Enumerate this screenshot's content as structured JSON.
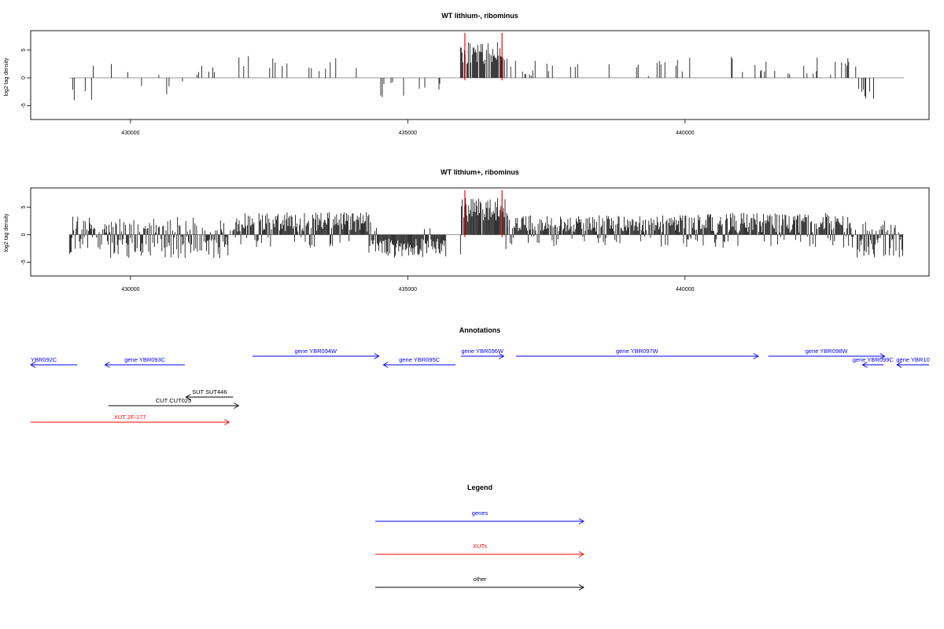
{
  "chart_data": [
    {
      "type": "bar",
      "title": "WT lithium-, ribominus",
      "ylabel": "log2 tag density",
      "xlim": [
        428200,
        444400
      ],
      "ylim": [
        -7.5,
        8.5
      ],
      "x_ticks": [
        430000,
        435000,
        440000
      ],
      "x_tick_labels": [
        "430000",
        "435000",
        "440000"
      ],
      "y_ticks": [
        -5,
        0,
        5
      ],
      "y_tick_labels": [
        "-5",
        "0",
        "5"
      ],
      "highlight_x": [
        436030,
        436700
      ],
      "highlight_color": "#ff0000",
      "density": "sparse",
      "seed": 7,
      "segments": [
        {
          "from": 428900,
          "to": 429300,
          "base": -3.0,
          "amp": 1.2
        },
        {
          "from": 429300,
          "to": 430000,
          "base": 1.8,
          "amp": 1.8
        },
        {
          "from": 430000,
          "to": 431200,
          "base": -1.0,
          "amp": 2.0
        },
        {
          "from": 431200,
          "to": 431700,
          "base": 1.0,
          "amp": 1.2
        },
        {
          "from": 431900,
          "to": 434000,
          "base": 2.4,
          "amp": 1.6
        },
        {
          "from": 434000,
          "to": 434300,
          "base": 1.2,
          "amp": 1.2
        },
        {
          "from": 434300,
          "to": 435700,
          "base": -2.2,
          "amp": 1.4
        },
        {
          "from": 435950,
          "to": 436800,
          "base": 4.5,
          "amp": 2.0
        },
        {
          "from": 436800,
          "to": 440000,
          "base": 1.6,
          "amp": 1.6
        },
        {
          "from": 440000,
          "to": 443100,
          "base": 2.0,
          "amp": 1.8
        },
        {
          "from": 443100,
          "to": 443950,
          "base": -2.4,
          "amp": 1.4
        }
      ]
    },
    {
      "type": "bar",
      "title": "WT lithium+, ribominus",
      "ylabel": "log2 tag density",
      "xlim": [
        428200,
        444400
      ],
      "ylim": [
        -7.5,
        8.5
      ],
      "x_ticks": [
        430000,
        435000,
        440000
      ],
      "x_tick_labels": [
        "430000",
        "435000",
        "440000"
      ],
      "y_ticks": [
        -5,
        0,
        5
      ],
      "y_tick_labels": [
        "-5",
        "0",
        "5"
      ],
      "highlight_x": [
        436030,
        436700
      ],
      "highlight_color": "#ff0000",
      "density": "dense",
      "seed": 19,
      "segments": [
        {
          "from": 428900,
          "to": 429300,
          "base": 0.0,
          "amp": 3.5
        },
        {
          "from": 429300,
          "to": 431800,
          "base": -0.5,
          "amp": 3.8
        },
        {
          "from": 431800,
          "to": 431900,
          "base": 0.5,
          "amp": 1.0
        },
        {
          "from": 431900,
          "to": 434300,
          "base": 2.3,
          "amp": 1.8
        },
        {
          "from": 434300,
          "to": 435700,
          "base": -2.4,
          "amp": 1.8
        },
        {
          "from": 435950,
          "to": 436800,
          "base": 4.5,
          "amp": 2.2
        },
        {
          "from": 436800,
          "to": 440000,
          "base": 2.0,
          "amp": 1.6
        },
        {
          "from": 440000,
          "to": 443000,
          "base": 2.2,
          "amp": 1.8
        },
        {
          "from": 443000,
          "to": 443950,
          "base": -1.5,
          "amp": 2.8
        }
      ]
    }
  ],
  "annotations": {
    "title": "Annotations",
    "genes": [
      {
        "label": "YBR092C",
        "start": 428200,
        "end": 429040,
        "strand": "-",
        "row": 1,
        "color": "#0000ff"
      },
      {
        "label": "gene YBR093C",
        "start": 429540,
        "end": 430980,
        "strand": "-",
        "row": 1,
        "color": "#0000ff"
      },
      {
        "label": "gene YBR094W",
        "start": 432200,
        "end": 434480,
        "strand": "+",
        "row": 0,
        "color": "#0000ff"
      },
      {
        "label": "gene YBR095C",
        "start": 434560,
        "end": 435860,
        "strand": "-",
        "row": 1,
        "color": "#0000ff"
      },
      {
        "label": "gene YBR096W",
        "start": 435960,
        "end": 436730,
        "strand": "+",
        "row": 0,
        "color": "#0000ff"
      },
      {
        "label": "gene YBR097W",
        "start": 436950,
        "end": 441320,
        "strand": "+",
        "row": 0,
        "color": "#0000ff"
      },
      {
        "label": "gene YBR098W",
        "start": 441500,
        "end": 443600,
        "strand": "+",
        "row": 0,
        "color": "#0000ff"
      },
      {
        "label": "gene YBR099C",
        "start": 443200,
        "end": 443580,
        "strand": "-",
        "row": 1,
        "color": "#0000ff"
      },
      {
        "label": "gene YBR10",
        "start": 443820,
        "end": 444400,
        "strand": "-",
        "row": 1,
        "color": "#0000ff"
      }
    ],
    "others": [
      {
        "label": "SUT SUT446",
        "start": 431000,
        "end": 431850,
        "strand": "-",
        "row": 0,
        "color": "#000000"
      },
      {
        "label": "CUT CUT025",
        "start": 429600,
        "end": 431950,
        "strand": "+",
        "row": 1,
        "color": "#000000"
      }
    ],
    "xuts": [
      {
        "label": "XUT 2F-177",
        "start": 428200,
        "end": 431780,
        "strand": "+",
        "row": 0,
        "color": "#ff0000"
      }
    ]
  },
  "legend": {
    "title": "Legend",
    "items": [
      {
        "label": "genes",
        "color": "#0000ff"
      },
      {
        "label": "XUTs",
        "color": "#ff0000"
      },
      {
        "label": "other",
        "color": "#000000"
      }
    ]
  }
}
